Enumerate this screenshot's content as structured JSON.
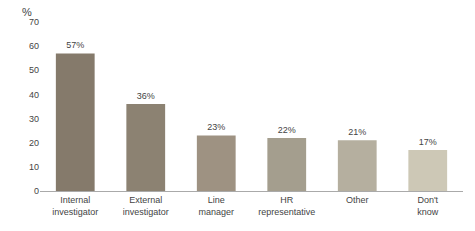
{
  "chart_data": {
    "type": "bar",
    "categories": [
      "Internal\ninvestigator",
      "External\ninvestigator",
      "Line\nmanager",
      "HR\nrepresentative",
      "Other",
      "Don't\nknow"
    ],
    "values": [
      57,
      36,
      23,
      22,
      21,
      17
    ],
    "value_labels": [
      "57%",
      "36%",
      "23%",
      "22%",
      "21%",
      "17%"
    ],
    "data_labels": true,
    "colors": [
      "#857a6b",
      "#8c8272",
      "#9e9282",
      "#a49e8e",
      "#b5af9f",
      "#cdc8b6"
    ],
    "ylabel": "%",
    "ylim": [
      0,
      70
    ],
    "yticks": [
      0,
      10,
      20,
      30,
      40,
      50,
      60,
      70
    ],
    "grid": false
  }
}
